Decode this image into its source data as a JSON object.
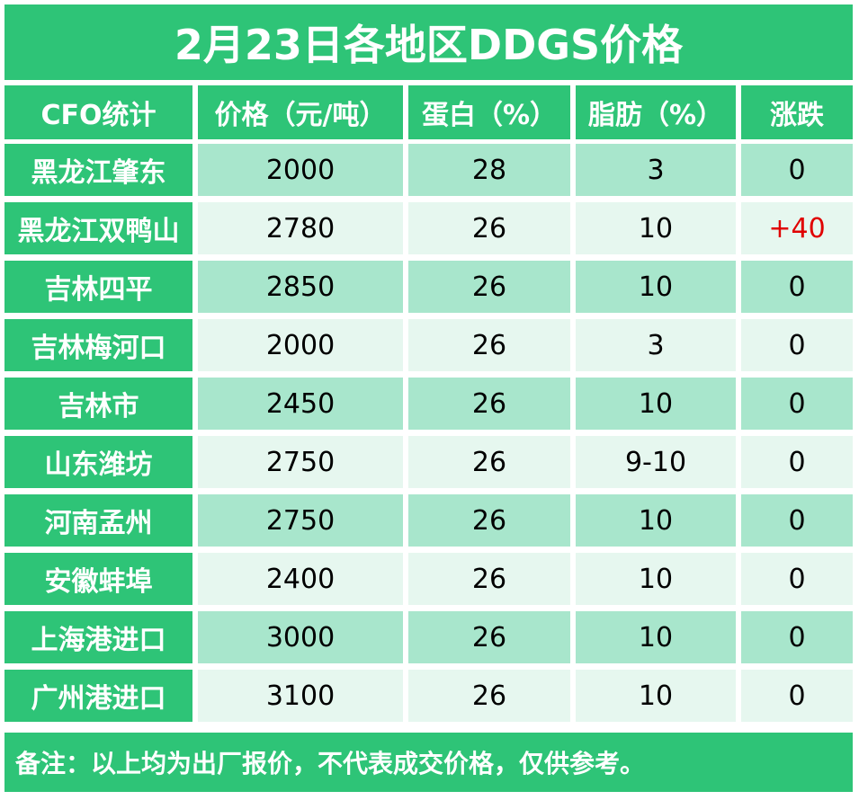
{
  "title": "2月23日各地区DDGS价格",
  "headers": [
    "CFO统计",
    "价格（元/吨）",
    "蛋白（%）",
    "脂肪（%）",
    "涨跌"
  ],
  "rows": [
    {
      "region": "黑龙江肇东",
      "price": "2000",
      "protein": "28",
      "fat": "3",
      "change": "0"
    },
    {
      "region": "黑龙江双鸭山",
      "price": "2780",
      "protein": "26",
      "fat": "10",
      "change": "+40"
    },
    {
      "region": "吉林四平",
      "price": "2850",
      "protein": "26",
      "fat": "10",
      "change": "0"
    },
    {
      "region": "吉林梅河口",
      "price": "2000",
      "protein": "26",
      "fat": "3",
      "change": "0"
    },
    {
      "region": "吉林市",
      "price": "2450",
      "protein": "26",
      "fat": "10",
      "change": "0"
    },
    {
      "region": "山东潍坊",
      "price": "2750",
      "protein": "26",
      "fat": "9-10",
      "change": "0"
    },
    {
      "region": "河南孟州",
      "price": "2750",
      "protein": "26",
      "fat": "10",
      "change": "0"
    },
    {
      "region": "安徽蚌埠",
      "price": "2400",
      "protein": "26",
      "fat": "10",
      "change": "0"
    },
    {
      "region": "上海港进口",
      "price": "3000",
      "protein": "26",
      "fat": "10",
      "change": "0"
    },
    {
      "region": "广州港进口",
      "price": "3100",
      "protein": "26",
      "fat": "10",
      "change": "0"
    }
  ],
  "note": "备注：以上均为出厂报价，不代表成交价格，仅供参考。",
  "colors": {
    "header_green": "#2ec477",
    "row_dark": "#a8e6cc",
    "row_light": "#e6f7ef",
    "rise_red": "#e00000"
  }
}
